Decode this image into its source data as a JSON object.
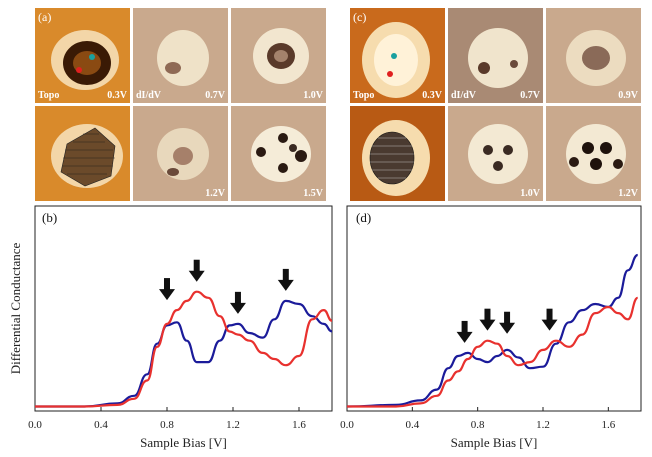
{
  "figure": {
    "panel_a": {
      "label": "(a)",
      "tiles": [
        {
          "left": "Topo",
          "right": "0.3V"
        },
        {
          "left": "dI/dV",
          "right": "0.7V"
        },
        {
          "left": "",
          "right": "1.0V"
        },
        {
          "left": "",
          "right": ""
        },
        {
          "left": "",
          "right": "1.2V"
        },
        {
          "left": "",
          "right": "1.5V"
        }
      ]
    },
    "panel_c": {
      "label": "(c)",
      "tiles": [
        {
          "left": "Topo",
          "right": "0.3V"
        },
        {
          "left": "dI/dV",
          "right": "0.7V"
        },
        {
          "left": "",
          "right": "0.9V"
        },
        {
          "left": "",
          "right": ""
        },
        {
          "left": "",
          "right": "1.0V"
        },
        {
          "left": "",
          "right": "1.2V"
        }
      ]
    },
    "panel_b_label": "(b)",
    "panel_d_label": "(d)",
    "ylabel": "Differential Conductance",
    "xlabel": "Sample Bias [V]",
    "colors": {
      "blue": "#1b1b9a",
      "red": "#e8312e",
      "orange": "#d98a2b",
      "beige": "#c9a98d"
    }
  },
  "chart_data": [
    {
      "type": "line",
      "title": "",
      "xlabel": "Sample Bias [V]",
      "ylabel": "Differential Conductance",
      "xlim": [
        0.0,
        1.8
      ],
      "ylim": [
        0,
        1
      ],
      "x_ticks": [
        "0.0",
        "0.4",
        "0.8",
        "1.2",
        "1.6"
      ],
      "arrows_at": [
        0.8,
        0.98,
        1.23,
        1.52
      ],
      "series": [
        {
          "color": "#1b1b9a",
          "x": [
            0.0,
            0.3,
            0.5,
            0.6,
            0.68,
            0.74,
            0.8,
            0.86,
            0.92,
            0.98,
            1.05,
            1.12,
            1.18,
            1.23,
            1.3,
            1.38,
            1.45,
            1.52,
            1.6,
            1.68,
            1.75,
            1.8
          ],
          "y": [
            0.01,
            0.01,
            0.03,
            0.08,
            0.22,
            0.42,
            0.54,
            0.56,
            0.44,
            0.3,
            0.3,
            0.44,
            0.54,
            0.55,
            0.49,
            0.46,
            0.58,
            0.7,
            0.68,
            0.6,
            0.55,
            0.5
          ]
        },
        {
          "color": "#e8312e",
          "x": [
            0.0,
            0.3,
            0.5,
            0.6,
            0.68,
            0.74,
            0.8,
            0.86,
            0.92,
            0.98,
            1.05,
            1.12,
            1.18,
            1.23,
            1.3,
            1.38,
            1.45,
            1.52,
            1.6,
            1.68,
            1.75,
            1.8
          ],
          "y": [
            0.01,
            0.01,
            0.02,
            0.06,
            0.18,
            0.4,
            0.55,
            0.64,
            0.7,
            0.76,
            0.72,
            0.6,
            0.5,
            0.48,
            0.44,
            0.36,
            0.32,
            0.28,
            0.34,
            0.58,
            0.64,
            0.57
          ]
        }
      ]
    },
    {
      "type": "line",
      "title": "",
      "xlabel": "Sample Bias [V]",
      "ylabel": "",
      "xlim": [
        0.0,
        1.8
      ],
      "ylim": [
        0,
        1
      ],
      "x_ticks": [
        "0.0",
        "0.4",
        "0.8",
        "1.2",
        "1.6"
      ],
      "arrows_at": [
        0.72,
        0.86,
        0.98,
        1.24
      ],
      "series": [
        {
          "color": "#1b1b9a",
          "x": [
            0.0,
            0.3,
            0.45,
            0.55,
            0.62,
            0.68,
            0.74,
            0.8,
            0.86,
            0.92,
            0.98,
            1.05,
            1.12,
            1.2,
            1.28,
            1.36,
            1.44,
            1.52,
            1.6,
            1.66,
            1.72,
            1.78
          ],
          "y": [
            0.01,
            0.02,
            0.05,
            0.12,
            0.26,
            0.34,
            0.36,
            0.32,
            0.3,
            0.34,
            0.38,
            0.33,
            0.26,
            0.27,
            0.42,
            0.56,
            0.64,
            0.68,
            0.66,
            0.72,
            0.9,
            1.0
          ]
        },
        {
          "color": "#e8312e",
          "x": [
            0.0,
            0.3,
            0.45,
            0.55,
            0.62,
            0.68,
            0.74,
            0.8,
            0.86,
            0.92,
            0.98,
            1.05,
            1.12,
            1.2,
            1.28,
            1.36,
            1.44,
            1.52,
            1.6,
            1.66,
            1.72,
            1.78
          ],
          "y": [
            0.01,
            0.01,
            0.03,
            0.08,
            0.18,
            0.24,
            0.32,
            0.4,
            0.44,
            0.42,
            0.34,
            0.28,
            0.3,
            0.38,
            0.44,
            0.4,
            0.48,
            0.62,
            0.66,
            0.62,
            0.58,
            0.72
          ]
        }
      ]
    }
  ]
}
